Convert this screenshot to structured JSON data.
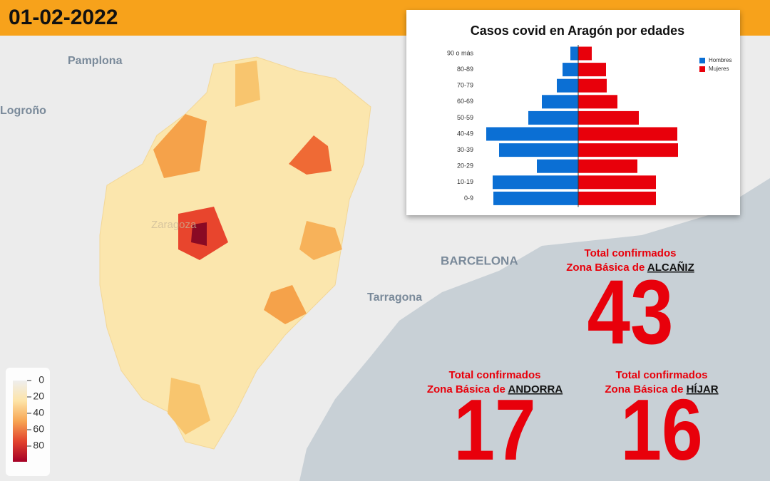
{
  "date": "01-02-2022",
  "map": {
    "places": [
      "Pamplona",
      "Logroño",
      "Zaragoza",
      "BARCELONA",
      "Tarragona"
    ],
    "colorbar_ticks": [
      0,
      20,
      40,
      60,
      80
    ]
  },
  "stats": [
    {
      "label": "Total confirmados",
      "zone_prefix": "Zona Básica de",
      "zone": "ALCAÑIZ",
      "value": "43"
    },
    {
      "label": "Total confirmados",
      "zone_prefix": "Zona Básica de",
      "zone": "ANDORRA",
      "value": "17"
    },
    {
      "label": "Total confirmados",
      "zone_prefix": "Zona Básica de",
      "zone": "HÍJAR",
      "value": "16"
    }
  ],
  "chart_data": {
    "type": "pyramid",
    "title": "Casos covid en Aragón por edades",
    "categories": [
      "90 o más",
      "80-89",
      "70-79",
      "60-69",
      "50-59",
      "40-49",
      "30-39",
      "20-29",
      "10-19",
      "0-9"
    ],
    "series": [
      {
        "name": "Hombres",
        "color": "#0b6fd4",
        "values": [
          11,
          22,
          30,
          51,
          70,
          129,
          111,
          58,
          120,
          119
        ]
      },
      {
        "name": "Mujeres",
        "color": "#e8000b",
        "values": [
          19,
          39,
          40,
          55,
          85,
          139,
          140,
          83,
          109,
          109
        ]
      }
    ],
    "legend": "upper right"
  }
}
